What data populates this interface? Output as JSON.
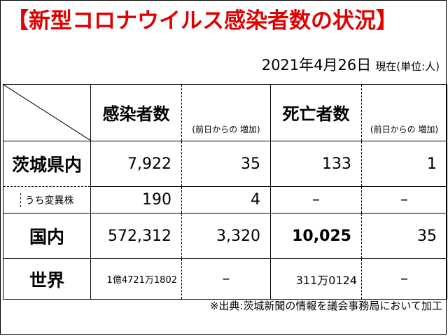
{
  "title": "【新型コロナウイルス感染者数の状況】",
  "date": "2021年4月26日",
  "as_of_unit": "現在(単位:人)",
  "columns": {
    "infections": "感染者数",
    "infections_increase": "(前日からの 増加)",
    "deaths": "死亡者数",
    "deaths_increase": "(前日からの 増加)"
  },
  "rows": [
    {
      "label": "茨城県内",
      "infections": "7,922",
      "infections_increase": "35",
      "deaths": "133",
      "deaths_increase": "1"
    },
    {
      "label": "うち変異株",
      "infections": "190",
      "infections_increase": "4",
      "deaths": "–",
      "deaths_increase": "–"
    },
    {
      "label": "国内",
      "infections": "572,312",
      "infections_increase": "3,320",
      "deaths": "10,025",
      "deaths_increase": "35"
    },
    {
      "label": "世界",
      "infections": "1億4721万1802",
      "infections_increase": "–",
      "deaths": "311万0124",
      "deaths_increase": "–"
    }
  ],
  "source": "※出典:茨城新聞の情報を議会事務局において加工",
  "colors": {
    "title": "#e00000",
    "text": "#000000",
    "background": "#ffffff"
  }
}
